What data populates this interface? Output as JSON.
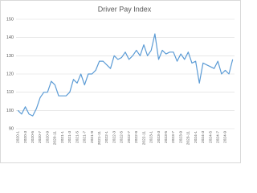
{
  "chart_data": {
    "type": "line",
    "title": "Driver Pay Index",
    "categories": [
      "2020-1",
      null,
      "2020-3",
      null,
      "2020-5",
      null,
      "2020-7",
      null,
      "2020-9",
      null,
      "2020-11",
      null,
      "2021-1",
      null,
      "2021-3",
      null,
      "2021-5",
      null,
      "2021-7",
      null,
      "2021-9",
      null,
      "2021-11",
      null,
      "2022-1",
      null,
      "2022-3",
      null,
      "2022-5",
      null,
      "2022-7",
      null,
      "2022-9",
      null,
      "2022-11",
      null,
      "2023-1",
      null,
      "2023-3",
      null,
      "2023-5",
      null,
      "2023-7",
      null,
      "2023-9",
      null,
      "2023-11",
      null,
      "2024-1",
      null,
      "2024-3",
      null,
      "2024-5",
      null,
      "2024-7",
      null,
      "2024-9",
      null,
      null
    ],
    "series": [
      {
        "name": "Driver Pay Index",
        "color": "#5b9bd5",
        "values": [
          100,
          98,
          102,
          98,
          97,
          101,
          107,
          110,
          110,
          116,
          114,
          108,
          108,
          108,
          110,
          117,
          115,
          120,
          114,
          120,
          120,
          122,
          127,
          127,
          125,
          123,
          130,
          128,
          129,
          132,
          128,
          130,
          133,
          130,
          136,
          130,
          133,
          142,
          128,
          133,
          131,
          132,
          132,
          127,
          131,
          128,
          132,
          126,
          127,
          115,
          126,
          125,
          124,
          123,
          127,
          120,
          122,
          120,
          128
        ]
      }
    ],
    "ylim": [
      90,
      150
    ],
    "yticks": [
      90,
      100,
      110,
      120,
      130,
      140,
      150
    ],
    "grid": true
  }
}
